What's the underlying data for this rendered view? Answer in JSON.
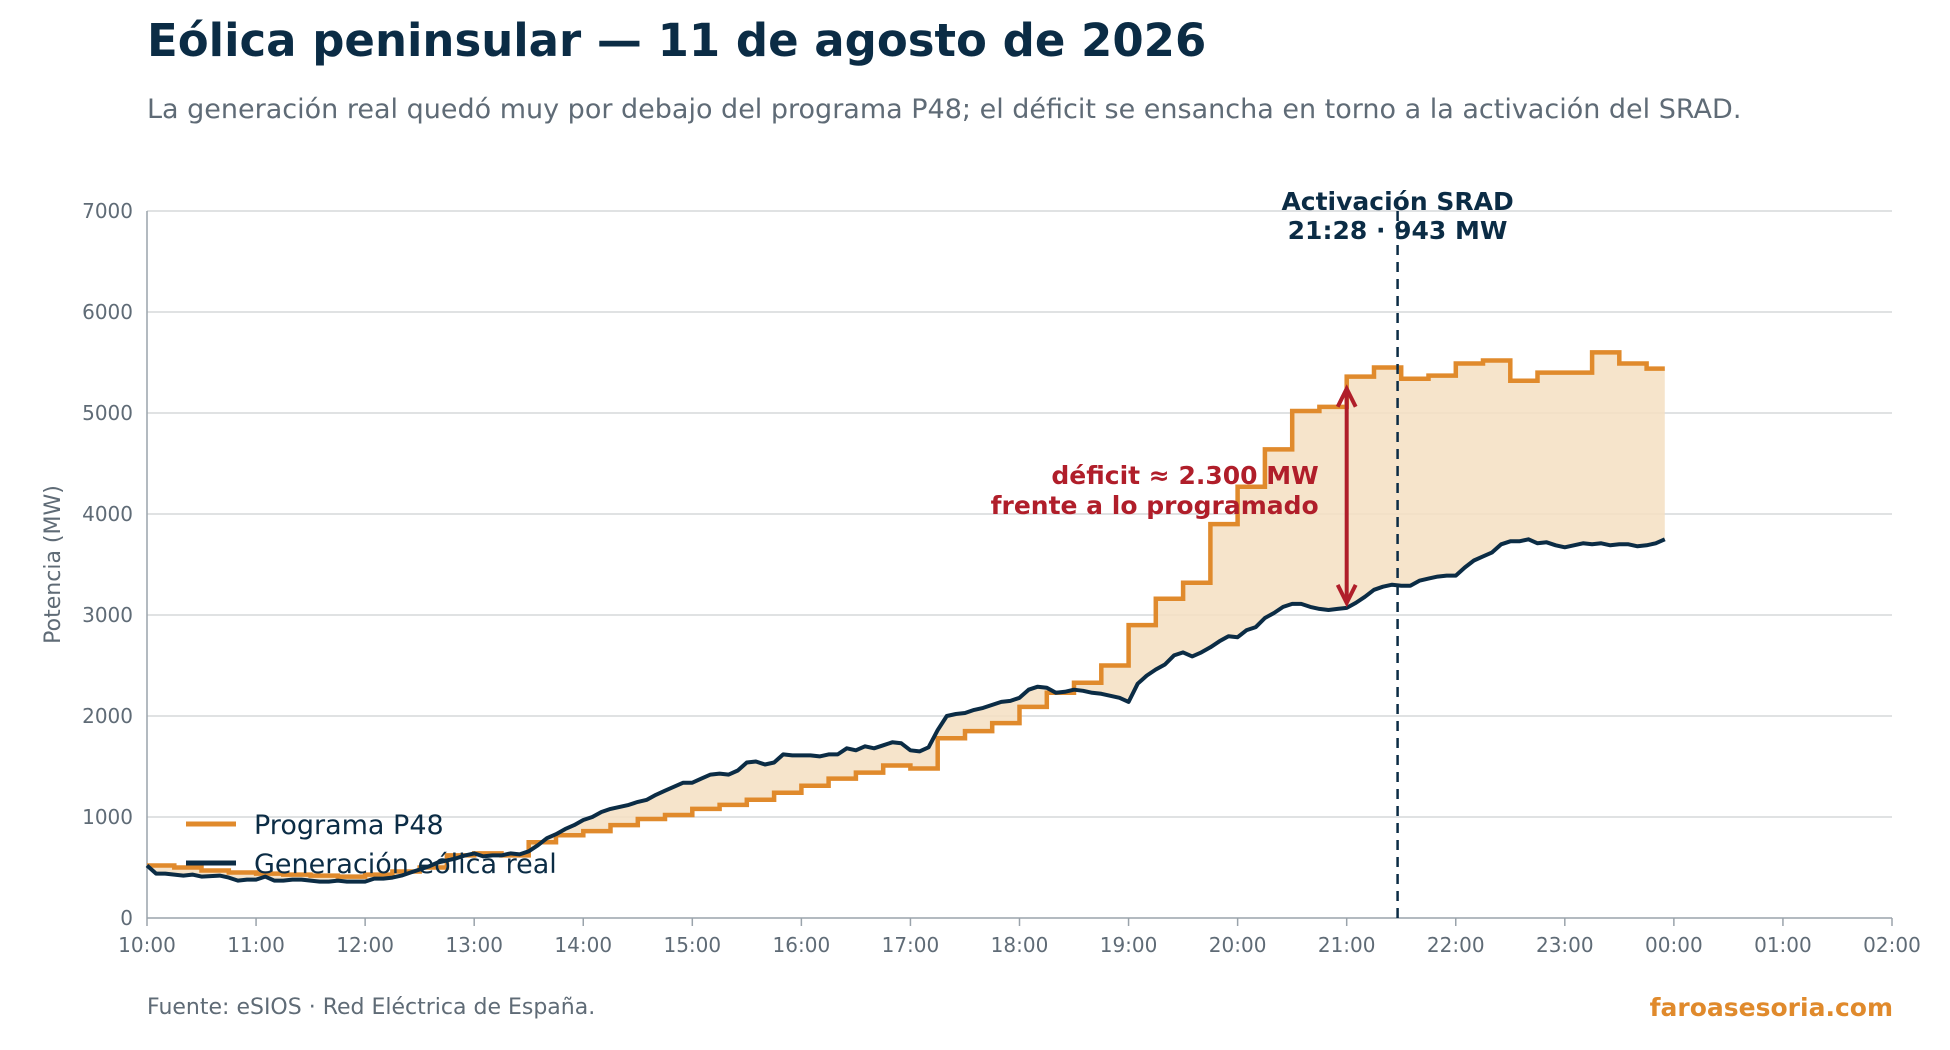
{
  "header": {
    "title": "Eólica peninsular — 11 de agosto de 2026",
    "subtitle": "La generación real quedó muy por debajo del programa P48; el déficit se ensancha en torno a la activación del SRAD."
  },
  "footer": {
    "source": "Fuente: eSIOS · Red Eléctrica de España.",
    "brand": "faroasesoria.com"
  },
  "colors": {
    "program": "#e08a2c",
    "real": "#0b2c45",
    "fill": "#f5dfc2",
    "deficit": "#b01e2a",
    "grid": "#d6d8da",
    "axis": "#9aa3ab"
  },
  "chart_data": {
    "type": "line",
    "title": "Eólica peninsular — 11 de agosto de 2026",
    "subtitle": "La generación real quedó muy por debajo del programa P48; el déficit se ensancha en torno a la activación del SRAD.",
    "xlabel": "",
    "ylabel": "Potencia (MW)",
    "xlim": [
      "10:00",
      "02:00"
    ],
    "ylim": [
      0,
      7000
    ],
    "x_ticks": [
      "10:00",
      "11:00",
      "12:00",
      "13:00",
      "14:00",
      "15:00",
      "16:00",
      "17:00",
      "18:00",
      "19:00",
      "20:00",
      "21:00",
      "22:00",
      "23:00",
      "00:00",
      "01:00",
      "02:00"
    ],
    "y_ticks": [
      0,
      1000,
      2000,
      3000,
      4000,
      5000,
      6000,
      7000
    ],
    "grid": "horizontal",
    "legend": "bottom-left",
    "series": [
      {
        "name": "Programa P48",
        "style": "step",
        "points": [
          [
            "10:00",
            520
          ],
          [
            "10:15",
            500
          ],
          [
            "10:30",
            470
          ],
          [
            "10:45",
            450
          ],
          [
            "11:00",
            440
          ],
          [
            "11:15",
            430
          ],
          [
            "11:30",
            420
          ],
          [
            "11:45",
            410
          ],
          [
            "12:00",
            430
          ],
          [
            "12:15",
            460
          ],
          [
            "12:30",
            500
          ],
          [
            "12:45",
            620
          ],
          [
            "13:00",
            640
          ],
          [
            "13:15",
            620
          ],
          [
            "13:30",
            750
          ],
          [
            "13:45",
            820
          ],
          [
            "14:00",
            860
          ],
          [
            "14:15",
            920
          ],
          [
            "14:30",
            980
          ],
          [
            "14:45",
            1020
          ],
          [
            "15:00",
            1080
          ],
          [
            "15:15",
            1120
          ],
          [
            "15:30",
            1170
          ],
          [
            "15:45",
            1240
          ],
          [
            "16:00",
            1310
          ],
          [
            "16:15",
            1380
          ],
          [
            "16:30",
            1440
          ],
          [
            "16:45",
            1510
          ],
          [
            "17:00",
            1480
          ],
          [
            "17:15",
            1780
          ],
          [
            "17:30",
            1850
          ],
          [
            "17:45",
            1930
          ],
          [
            "18:00",
            2090
          ],
          [
            "18:15",
            2230
          ],
          [
            "18:30",
            2330
          ],
          [
            "18:45",
            2500
          ],
          [
            "19:00",
            2900
          ],
          [
            "19:15",
            3160
          ],
          [
            "19:30",
            3320
          ],
          [
            "19:45",
            3900
          ],
          [
            "20:00",
            4270
          ],
          [
            "20:15",
            4640
          ],
          [
            "20:30",
            5020
          ],
          [
            "20:45",
            5060
          ],
          [
            "21:00",
            5360
          ],
          [
            "21:15",
            5450
          ],
          [
            "21:30",
            5340
          ],
          [
            "21:45",
            5370
          ],
          [
            "22:00",
            5490
          ],
          [
            "22:15",
            5520
          ],
          [
            "22:30",
            5320
          ],
          [
            "22:45",
            5400
          ],
          [
            "23:00",
            5400
          ],
          [
            "23:15",
            5600
          ],
          [
            "23:30",
            5490
          ],
          [
            "23:45",
            5440
          ],
          [
            "23:55",
            5440
          ]
        ]
      },
      {
        "name": "Generación eólica real",
        "style": "line",
        "points": [
          [
            "10:00",
            520
          ],
          [
            "10:05",
            440
          ],
          [
            "10:10",
            440
          ],
          [
            "10:15",
            430
          ],
          [
            "10:20",
            420
          ],
          [
            "10:25",
            430
          ],
          [
            "10:30",
            410
          ],
          [
            "10:35",
            415
          ],
          [
            "10:40",
            420
          ],
          [
            "10:45",
            400
          ],
          [
            "10:50",
            370
          ],
          [
            "10:55",
            380
          ],
          [
            "11:00",
            380
          ],
          [
            "11:05",
            410
          ],
          [
            "11:10",
            370
          ],
          [
            "11:15",
            370
          ],
          [
            "11:20",
            380
          ],
          [
            "11:25",
            380
          ],
          [
            "11:30",
            370
          ],
          [
            "11:35",
            360
          ],
          [
            "11:40",
            360
          ],
          [
            "11:45",
            370
          ],
          [
            "11:50",
            360
          ],
          [
            "11:55",
            360
          ],
          [
            "12:00",
            360
          ],
          [
            "12:05",
            390
          ],
          [
            "12:10",
            390
          ],
          [
            "12:15",
            400
          ],
          [
            "12:20",
            420
          ],
          [
            "12:25",
            450
          ],
          [
            "12:30",
            480
          ],
          [
            "12:35",
            510
          ],
          [
            "12:40",
            550
          ],
          [
            "12:45",
            570
          ],
          [
            "12:50",
            590
          ],
          [
            "12:55",
            620
          ],
          [
            "13:00",
            640
          ],
          [
            "13:05",
            610
          ],
          [
            "13:10",
            620
          ],
          [
            "13:15",
            620
          ],
          [
            "13:20",
            640
          ],
          [
            "13:25",
            630
          ],
          [
            "13:30",
            660
          ],
          [
            "13:35",
            720
          ],
          [
            "13:40",
            790
          ],
          [
            "13:45",
            830
          ],
          [
            "13:50",
            880
          ],
          [
            "13:55",
            920
          ],
          [
            "14:00",
            970
          ],
          [
            "14:05",
            1000
          ],
          [
            "14:10",
            1050
          ],
          [
            "14:15",
            1080
          ],
          [
            "14:20",
            1100
          ],
          [
            "14:25",
            1120
          ],
          [
            "14:30",
            1150
          ],
          [
            "14:35",
            1170
          ],
          [
            "14:40",
            1220
          ],
          [
            "14:45",
            1260
          ],
          [
            "14:50",
            1300
          ],
          [
            "14:55",
            1340
          ],
          [
            "15:00",
            1340
          ],
          [
            "15:05",
            1380
          ],
          [
            "15:10",
            1420
          ],
          [
            "15:15",
            1430
          ],
          [
            "15:20",
            1420
          ],
          [
            "15:25",
            1460
          ],
          [
            "15:30",
            1540
          ],
          [
            "15:35",
            1550
          ],
          [
            "15:40",
            1520
          ],
          [
            "15:45",
            1540
          ],
          [
            "15:50",
            1620
          ],
          [
            "15:55",
            1610
          ],
          [
            "16:00",
            1610
          ],
          [
            "16:05",
            1610
          ],
          [
            "16:10",
            1600
          ],
          [
            "16:15",
            1620
          ],
          [
            "16:20",
            1620
          ],
          [
            "16:25",
            1680
          ],
          [
            "16:30",
            1660
          ],
          [
            "16:35",
            1700
          ],
          [
            "16:40",
            1680
          ],
          [
            "16:45",
            1710
          ],
          [
            "16:50",
            1740
          ],
          [
            "16:55",
            1730
          ],
          [
            "17:00",
            1660
          ],
          [
            "17:05",
            1650
          ],
          [
            "17:10",
            1690
          ],
          [
            "17:15",
            1860
          ],
          [
            "17:20",
            2000
          ],
          [
            "17:25",
            2020
          ],
          [
            "17:30",
            2030
          ],
          [
            "17:35",
            2060
          ],
          [
            "17:40",
            2080
          ],
          [
            "17:45",
            2110
          ],
          [
            "17:50",
            2140
          ],
          [
            "17:55",
            2150
          ],
          [
            "18:00",
            2180
          ],
          [
            "18:05",
            2260
          ],
          [
            "18:10",
            2290
          ],
          [
            "18:15",
            2280
          ],
          [
            "18:20",
            2230
          ],
          [
            "18:25",
            2240
          ],
          [
            "18:30",
            2260
          ],
          [
            "18:35",
            2250
          ],
          [
            "18:40",
            2230
          ],
          [
            "18:45",
            2220
          ],
          [
            "18:50",
            2200
          ],
          [
            "18:55",
            2180
          ],
          [
            "19:00",
            2140
          ],
          [
            "19:05",
            2320
          ],
          [
            "19:10",
            2400
          ],
          [
            "19:15",
            2460
          ],
          [
            "19:20",
            2510
          ],
          [
            "19:25",
            2600
          ],
          [
            "19:30",
            2630
          ],
          [
            "19:35",
            2590
          ],
          [
            "19:40",
            2630
          ],
          [
            "19:45",
            2680
          ],
          [
            "19:50",
            2740
          ],
          [
            "19:55",
            2790
          ],
          [
            "20:00",
            2780
          ],
          [
            "20:05",
            2850
          ],
          [
            "20:10",
            2880
          ],
          [
            "20:15",
            2970
          ],
          [
            "20:20",
            3020
          ],
          [
            "20:25",
            3080
          ],
          [
            "20:30",
            3110
          ],
          [
            "20:35",
            3110
          ],
          [
            "20:40",
            3080
          ],
          [
            "20:45",
            3060
          ],
          [
            "20:50",
            3050
          ],
          [
            "20:55",
            3060
          ],
          [
            "21:00",
            3070
          ],
          [
            "21:05",
            3120
          ],
          [
            "21:10",
            3180
          ],
          [
            "21:15",
            3250
          ],
          [
            "21:20",
            3280
          ],
          [
            "21:25",
            3300
          ],
          [
            "21:30",
            3290
          ],
          [
            "21:35",
            3290
          ],
          [
            "21:40",
            3340
          ],
          [
            "21:45",
            3360
          ],
          [
            "21:50",
            3380
          ],
          [
            "21:55",
            3390
          ],
          [
            "22:00",
            3390
          ],
          [
            "22:05",
            3470
          ],
          [
            "22:10",
            3540
          ],
          [
            "22:15",
            3580
          ],
          [
            "22:20",
            3620
          ],
          [
            "22:25",
            3700
          ],
          [
            "22:30",
            3730
          ],
          [
            "22:35",
            3730
          ],
          [
            "22:40",
            3750
          ],
          [
            "22:45",
            3710
          ],
          [
            "22:50",
            3720
          ],
          [
            "22:55",
            3690
          ],
          [
            "23:00",
            3670
          ],
          [
            "23:05",
            3690
          ],
          [
            "23:10",
            3710
          ],
          [
            "23:15",
            3700
          ],
          [
            "23:20",
            3710
          ],
          [
            "23:25",
            3690
          ],
          [
            "23:30",
            3700
          ],
          [
            "23:35",
            3700
          ],
          [
            "23:40",
            3680
          ],
          [
            "23:45",
            3690
          ],
          [
            "23:50",
            3710
          ],
          [
            "23:55",
            3750
          ]
        ]
      }
    ],
    "fill_between": true,
    "annotations": {
      "srad": {
        "x": "21:28",
        "lines": [
          "Activación SRAD",
          "21:28 · 943 MW"
        ]
      },
      "deficit": {
        "x": "21:00",
        "y_from": 5240,
        "y_to": 3120,
        "lines": [
          "déficit ≈ 2.300 MW",
          "frente a lo programado"
        ]
      }
    }
  }
}
